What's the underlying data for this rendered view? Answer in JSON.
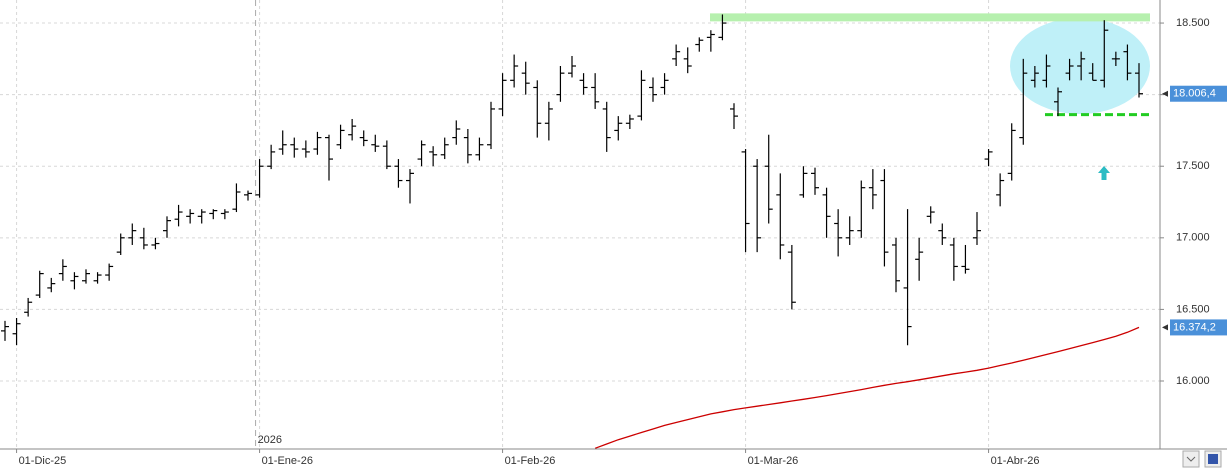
{
  "chart_data": {
    "type": "ohlc",
    "categories": [
      null,
      "01-Dic-25",
      null,
      null,
      null,
      null,
      null,
      null,
      null,
      null,
      null,
      null,
      null,
      null,
      null,
      null,
      null,
      null,
      null,
      null,
      null,
      null,
      "01-Ene-26",
      null,
      null,
      null,
      null,
      null,
      null,
      null,
      null,
      null,
      null,
      null,
      null,
      null,
      null,
      null,
      null,
      null,
      null,
      null,
      null,
      "01-Feb-26",
      null,
      null,
      null,
      null,
      null,
      null,
      null,
      null,
      null,
      null,
      null,
      null,
      null,
      null,
      null,
      null,
      null,
      null,
      null,
      null,
      "01-Mar-26",
      null,
      null,
      null,
      null,
      null,
      null,
      null,
      null,
      null,
      null,
      null,
      null,
      null,
      null,
      null,
      null,
      null,
      null,
      null,
      null,
      "01-Abr-26",
      null,
      null,
      null,
      null,
      null,
      null,
      null,
      null,
      null,
      null,
      null,
      null,
      null
    ],
    "year_marker": {
      "index": 22,
      "label": "2026"
    },
    "ohlc": {
      "color": "#000000",
      "open": [
        16350,
        16330,
        16480,
        16600,
        16650,
        16750,
        16700,
        16700,
        16700,
        16740,
        16900,
        17000,
        17000,
        16950,
        17050,
        17130,
        17150,
        17150,
        17170,
        17170,
        17200,
        17300,
        17300,
        17500,
        17620,
        17650,
        17620,
        17620,
        17700,
        17650,
        17720,
        17700,
        17650,
        17640,
        17500,
        17400,
        17550,
        17600,
        17580,
        17700,
        17700,
        17580,
        17650,
        17900,
        18100,
        18150,
        18050,
        17800,
        18000,
        18150,
        18100,
        18050,
        17900,
        17750,
        17800,
        17850,
        18050,
        18050,
        18250,
        18250,
        18350,
        18400,
        18400,
        17900,
        17600,
        17500,
        17500,
        17300,
        16900,
        17300,
        17450,
        17300,
        17100,
        17000,
        17050,
        17350,
        17400,
        16950,
        16650,
        16850,
        17150,
        17050,
        16950,
        16800,
        17000,
        17550,
        17300,
        17450,
        17700,
        18100,
        18100,
        17950,
        18150,
        18200,
        18150,
        18100,
        18250,
        18300,
        18150
      ],
      "high": [
        16420,
        16440,
        16580,
        16770,
        16720,
        16850,
        16760,
        16780,
        16760,
        16820,
        17030,
        17100,
        17070,
        17000,
        17150,
        17230,
        17200,
        17200,
        17200,
        17200,
        17380,
        17330,
        17550,
        17650,
        17750,
        17700,
        17680,
        17740,
        17720,
        17790,
        17830,
        17750,
        17720,
        17680,
        17550,
        17480,
        17680,
        17640,
        17700,
        17820,
        17760,
        17700,
        17950,
        18150,
        18280,
        18230,
        18100,
        17950,
        18200,
        18270,
        18150,
        18150,
        17950,
        17850,
        17860,
        18170,
        18120,
        18150,
        18350,
        18330,
        18400,
        18450,
        18560,
        17940,
        17620,
        17550,
        17720,
        17450,
        16950,
        17500,
        17490,
        17350,
        17200,
        17150,
        17400,
        17480,
        17480,
        17000,
        17200,
        17000,
        17220,
        17100,
        17000,
        16950,
        17180,
        17620,
        17450,
        17800,
        18250,
        18200,
        18280,
        18050,
        18250,
        18300,
        18220,
        18520,
        18300,
        18350,
        18220
      ],
      "low": [
        16280,
        16250,
        16450,
        16580,
        16620,
        16700,
        16640,
        16680,
        16680,
        16700,
        16880,
        16950,
        16920,
        16920,
        17000,
        17080,
        17100,
        17100,
        17130,
        17130,
        17180,
        17260,
        17280,
        17480,
        17580,
        17560,
        17560,
        17580,
        17400,
        17620,
        17680,
        17640,
        17600,
        17480,
        17350,
        17240,
        17500,
        17500,
        17550,
        17650,
        17520,
        17540,
        17620,
        17850,
        18050,
        18000,
        17700,
        17680,
        17950,
        18120,
        18000,
        17900,
        17600,
        17680,
        17760,
        17820,
        17950,
        18000,
        18200,
        18150,
        18300,
        18300,
        18380,
        17760,
        16900,
        16900,
        17100,
        16850,
        16500,
        17280,
        17300,
        17000,
        16870,
        16950,
        17000,
        17200,
        16800,
        16620,
        16250,
        16700,
        17100,
        16950,
        16700,
        16750,
        16950,
        17500,
        17220,
        17400,
        17650,
        18050,
        18050,
        17850,
        18100,
        18100,
        18100,
        18050,
        18200,
        18100,
        17980
      ],
      "close": [
        16380,
        16400,
        16550,
        16750,
        16680,
        16800,
        16730,
        16750,
        16740,
        16800,
        17000,
        17050,
        16950,
        16960,
        17120,
        17180,
        17170,
        17180,
        17190,
        17180,
        17320,
        17310,
        17500,
        17600,
        17650,
        17620,
        17600,
        17700,
        17550,
        17750,
        17780,
        17680,
        17640,
        17500,
        17400,
        17450,
        17650,
        17580,
        17650,
        17760,
        17580,
        17650,
        17900,
        18100,
        18200,
        18080,
        17800,
        17900,
        18150,
        18200,
        18050,
        17950,
        17700,
        17800,
        17830,
        18100,
        18000,
        18100,
        18300,
        18200,
        18380,
        18420,
        18500,
        17850,
        17100,
        17000,
        17200,
        16950,
        16550,
        17450,
        17350,
        17150,
        17000,
        17050,
        17350,
        17300,
        16900,
        16700,
        16380,
        16900,
        17180,
        17000,
        16800,
        16780,
        17050,
        17600,
        17400,
        17750,
        18150,
        18150,
        18200,
        18020,
        18200,
        18250,
        18100,
        18450,
        18250,
        18150,
        18006.4
      ]
    },
    "moving_average": {
      "color": "#cc0000",
      "values": [
        null,
        null,
        null,
        null,
        null,
        null,
        null,
        null,
        null,
        null,
        null,
        null,
        null,
        null,
        null,
        null,
        null,
        null,
        null,
        null,
        null,
        null,
        null,
        null,
        null,
        null,
        null,
        null,
        null,
        null,
        null,
        null,
        null,
        null,
        null,
        null,
        null,
        null,
        null,
        null,
        null,
        null,
        null,
        null,
        null,
        null,
        null,
        null,
        null,
        null,
        null,
        15530,
        15560,
        15590,
        15615,
        15640,
        15665,
        15690,
        15710,
        15730,
        15750,
        15770,
        15785,
        15800,
        15812,
        15824,
        15836,
        15848,
        15860,
        15872,
        15885,
        15898,
        15912,
        15926,
        15940,
        15955,
        15970,
        15983,
        15995,
        16008,
        16022,
        16036,
        16050,
        16062,
        16075,
        16090,
        16108,
        16126,
        16145,
        16165,
        16185,
        16205,
        16226,
        16247,
        16268,
        16290,
        16312,
        16340,
        16374.2
      ]
    },
    "price_tags": [
      {
        "value": 18006.4,
        "label": "18.006,4"
      },
      {
        "value": 16374.2,
        "label": "16.374,2"
      }
    ],
    "tag_color": "#4a90d9",
    "resistance": {
      "value": 18540,
      "color": "#b6f0ae"
    },
    "support": {
      "value": 17860,
      "color": "#22cc22"
    },
    "ylim": [
      15525,
      18661
    ],
    "yticks": [
      {
        "value": 16000,
        "label": "16.000"
      },
      {
        "value": 16500,
        "label": "16.500"
      },
      {
        "value": 17000,
        "label": "17.000"
      },
      {
        "value": 17500,
        "label": "17.500"
      },
      {
        "value": 18000,
        "label": "18.000"
      },
      {
        "value": 18500,
        "label": "18.500"
      }
    ],
    "grid": true
  }
}
